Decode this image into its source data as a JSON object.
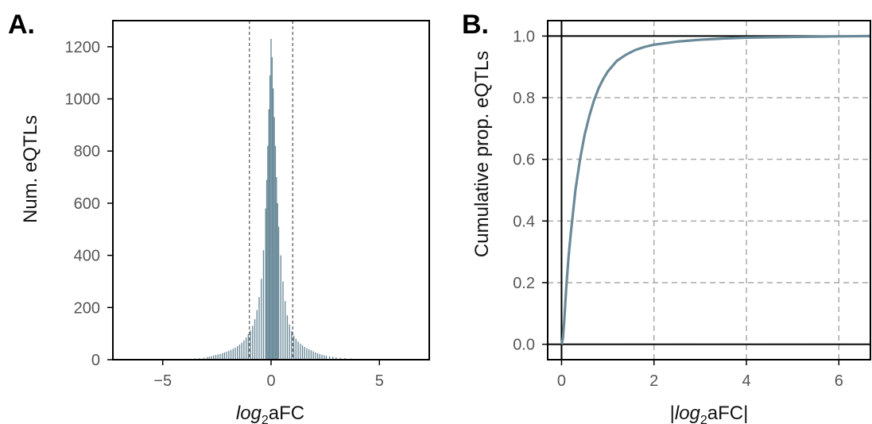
{
  "colors": {
    "hist_fill": "#6a8a99",
    "cdf_line": "#6a8a99",
    "frame": "#000000",
    "grid": "#aaaaaa",
    "ref_line": "#555555"
  },
  "chart_data": [
    {
      "panel_label": "A.",
      "type": "bar",
      "subtype": "histogram",
      "xlabel_italic": "log",
      "xlabel_sub": "2",
      "xlabel_rest": "aFC",
      "ylabel": "Num. eQTLs",
      "xlim": [
        -7.3,
        7.3
      ],
      "ylim": [
        0,
        1300
      ],
      "xticks": [
        -5,
        0,
        5
      ],
      "xtick_labels": [
        "−5",
        "0",
        "5"
      ],
      "yticks": [
        0,
        200,
        400,
        600,
        800,
        1000,
        1200
      ],
      "ytick_labels": [
        "0",
        "200",
        "400",
        "600",
        "800",
        "1000",
        "1200"
      ],
      "reference_lines_x": [
        -1,
        1
      ],
      "bin_width": 0.05,
      "bins": [
        {
          "x": -6.6,
          "y": 2
        },
        {
          "x": -6.0,
          "y": 1
        },
        {
          "x": -5.2,
          "y": 2
        },
        {
          "x": -4.6,
          "y": 2
        },
        {
          "x": -4.2,
          "y": 3
        },
        {
          "x": -3.8,
          "y": 4
        },
        {
          "x": -3.5,
          "y": 5
        },
        {
          "x": -3.3,
          "y": 6
        },
        {
          "x": -3.1,
          "y": 8
        },
        {
          "x": -2.95,
          "y": 10
        },
        {
          "x": -2.85,
          "y": 12
        },
        {
          "x": -2.75,
          "y": 14
        },
        {
          "x": -2.65,
          "y": 16
        },
        {
          "x": -2.55,
          "y": 18
        },
        {
          "x": -2.45,
          "y": 20
        },
        {
          "x": -2.35,
          "y": 22
        },
        {
          "x": -2.25,
          "y": 25
        },
        {
          "x": -2.15,
          "y": 28
        },
        {
          "x": -2.05,
          "y": 31
        },
        {
          "x": -1.95,
          "y": 34
        },
        {
          "x": -1.85,
          "y": 38
        },
        {
          "x": -1.75,
          "y": 42
        },
        {
          "x": -1.65,
          "y": 46
        },
        {
          "x": -1.55,
          "y": 52
        },
        {
          "x": -1.45,
          "y": 58
        },
        {
          "x": -1.35,
          "y": 65
        },
        {
          "x": -1.25,
          "y": 74
        },
        {
          "x": -1.15,
          "y": 85
        },
        {
          "x": -1.05,
          "y": 98
        },
        {
          "x": -0.95,
          "y": 112
        },
        {
          "x": -0.85,
          "y": 130
        },
        {
          "x": -0.75,
          "y": 155
        },
        {
          "x": -0.65,
          "y": 190
        },
        {
          "x": -0.55,
          "y": 240
        },
        {
          "x": -0.45,
          "y": 310
        },
        {
          "x": -0.35,
          "y": 420
        },
        {
          "x": -0.25,
          "y": 580
        },
        {
          "x": -0.2,
          "y": 690
        },
        {
          "x": -0.15,
          "y": 820
        },
        {
          "x": -0.1,
          "y": 960
        },
        {
          "x": -0.05,
          "y": 1090
        },
        {
          "x": 0.0,
          "y": 1230
        },
        {
          "x": 0.05,
          "y": 1160
        },
        {
          "x": 0.1,
          "y": 1040
        },
        {
          "x": 0.15,
          "y": 930
        },
        {
          "x": 0.2,
          "y": 820
        },
        {
          "x": 0.25,
          "y": 700
        },
        {
          "x": 0.3,
          "y": 600
        },
        {
          "x": 0.35,
          "y": 510
        },
        {
          "x": 0.45,
          "y": 400
        },
        {
          "x": 0.55,
          "y": 300
        },
        {
          "x": 0.65,
          "y": 225
        },
        {
          "x": 0.75,
          "y": 170
        },
        {
          "x": 0.85,
          "y": 135
        },
        {
          "x": 0.95,
          "y": 110
        },
        {
          "x": 1.05,
          "y": 92
        },
        {
          "x": 1.15,
          "y": 80
        },
        {
          "x": 1.25,
          "y": 70
        },
        {
          "x": 1.35,
          "y": 62
        },
        {
          "x": 1.45,
          "y": 55
        },
        {
          "x": 1.55,
          "y": 49
        },
        {
          "x": 1.65,
          "y": 44
        },
        {
          "x": 1.75,
          "y": 40
        },
        {
          "x": 1.85,
          "y": 36
        },
        {
          "x": 1.95,
          "y": 32
        },
        {
          "x": 2.05,
          "y": 28
        },
        {
          "x": 2.15,
          "y": 25
        },
        {
          "x": 2.25,
          "y": 22
        },
        {
          "x": 2.35,
          "y": 19
        },
        {
          "x": 2.45,
          "y": 17
        },
        {
          "x": 2.55,
          "y": 15
        },
        {
          "x": 2.7,
          "y": 13
        },
        {
          "x": 2.85,
          "y": 11
        },
        {
          "x": 3.0,
          "y": 9
        },
        {
          "x": 3.2,
          "y": 7
        },
        {
          "x": 3.4,
          "y": 6
        },
        {
          "x": 3.7,
          "y": 4
        },
        {
          "x": 4.1,
          "y": 3
        },
        {
          "x": 4.6,
          "y": 2
        },
        {
          "x": 5.3,
          "y": 2
        },
        {
          "x": 6.2,
          "y": 1
        }
      ]
    },
    {
      "panel_label": "B.",
      "type": "line",
      "xlabel_prefix": "|",
      "xlabel_italic": "log",
      "xlabel_sub": "2",
      "xlabel_rest": "aFC|",
      "ylabel": "Cumulative prop. eQTLs",
      "xlim": [
        -0.3,
        6.7
      ],
      "ylim": [
        -0.05,
        1.05
      ],
      "xticks": [
        0,
        2,
        4,
        6
      ],
      "xtick_labels": [
        "0",
        "2",
        "4",
        "6"
      ],
      "yticks": [
        0.0,
        0.2,
        0.4,
        0.6,
        0.8,
        1.0
      ],
      "ytick_labels": [
        "0.0",
        "0.2",
        "0.4",
        "0.6",
        "0.8",
        "1.0"
      ],
      "grid": true,
      "reference_lines_x": [
        0
      ],
      "reference_lines_y": [
        0,
        1
      ],
      "x": [
        0,
        0.03,
        0.06,
        0.1,
        0.15,
        0.2,
        0.25,
        0.3,
        0.4,
        0.5,
        0.6,
        0.7,
        0.8,
        0.9,
        1.0,
        1.2,
        1.4,
        1.6,
        1.8,
        2.0,
        2.5,
        3.0,
        3.5,
        4.0,
        5.0,
        6.0,
        6.7
      ],
      "y": [
        0,
        0.02,
        0.08,
        0.18,
        0.28,
        0.36,
        0.43,
        0.5,
        0.6,
        0.68,
        0.74,
        0.79,
        0.83,
        0.86,
        0.885,
        0.92,
        0.94,
        0.955,
        0.965,
        0.972,
        0.982,
        0.988,
        0.992,
        0.995,
        0.997,
        0.999,
        1.0
      ]
    }
  ]
}
